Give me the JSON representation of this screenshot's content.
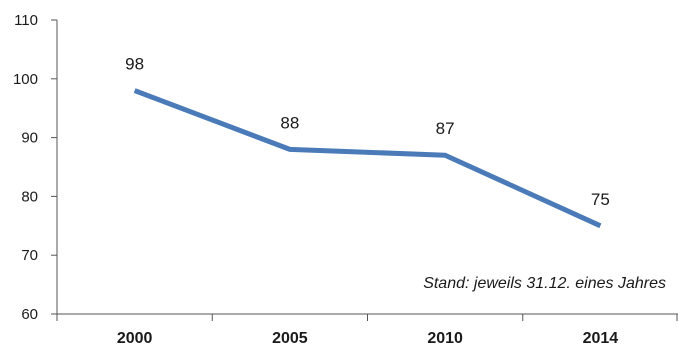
{
  "chart_data": {
    "type": "line",
    "categories": [
      "2000",
      "2005",
      "2010",
      "2014"
    ],
    "values": [
      98,
      88,
      87,
      75
    ],
    "data_labels": [
      "98",
      "88",
      "87",
      "75"
    ],
    "ylim": [
      60,
      110
    ],
    "y_ticks": [
      "60",
      "70",
      "80",
      "90",
      "100",
      "110"
    ],
    "annotation": "Stand: jeweils 31.12. eines Jahres",
    "line_color": "#4a7ab8",
    "grid": false,
    "legend": "none"
  }
}
